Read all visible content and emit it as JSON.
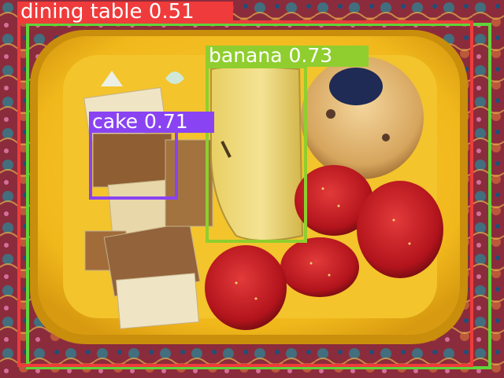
{
  "scene": {
    "description_icon": "bento-lunchbox-photo"
  },
  "detections": [
    {
      "name": "dining-table",
      "label": "dining table 0.51",
      "color": "#ef3b3b"
    },
    {
      "name": "outer-box",
      "label": "",
      "color": "#5fd43a"
    },
    {
      "name": "banana",
      "label": "banana 0.73",
      "color": "#8fce2e"
    },
    {
      "name": "cake",
      "label": "cake 0.71",
      "color": "#8a43f2"
    }
  ]
}
